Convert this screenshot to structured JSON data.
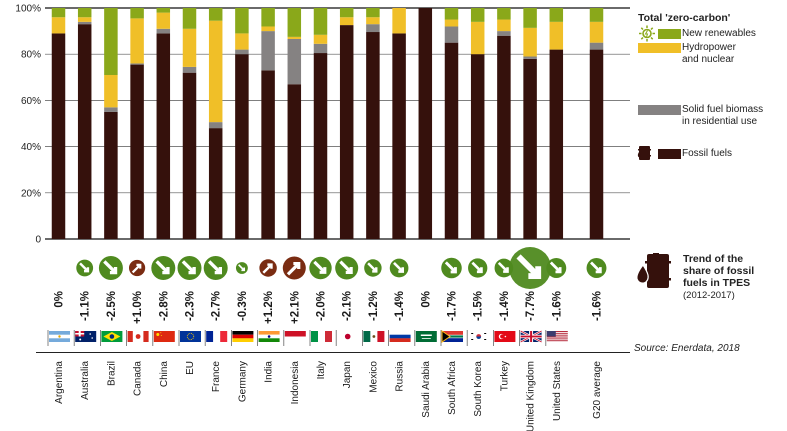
{
  "chart_data": {
    "type": "bar",
    "stacked": true,
    "title": "",
    "xlabel": "",
    "ylabel": "",
    "ylim": [
      0,
      100
    ],
    "yticks": [
      "0",
      "20%",
      "40%",
      "60%",
      "80%",
      "100%"
    ],
    "grid": true,
    "categories": [
      "Argentina",
      "Australia",
      "Brazil",
      "Canada",
      "China",
      "EU",
      "France",
      "Germany",
      "India",
      "Indonesia",
      "Italy",
      "Japan",
      "Mexico",
      "Russia",
      "Saudi Arabia",
      "South Africa",
      "South Korea",
      "Turkey",
      "United Kingdom",
      "United States",
      "G20 average"
    ],
    "series": [
      {
        "name": "Fossil fuels",
        "color": "#35110c",
        "values": [
          89,
          93,
          55,
          75.5,
          89,
          72,
          48,
          80,
          73,
          67,
          80.5,
          92.6,
          89.6,
          89,
          100,
          85,
          80,
          88,
          78,
          82,
          82
        ]
      },
      {
        "name": "Solid fuel biomass in residential use",
        "color": "#858282",
        "values": [
          0,
          1,
          2,
          0.5,
          2,
          2.5,
          2.6,
          2,
          17,
          19.6,
          4,
          0,
          3.4,
          0,
          0,
          7,
          0,
          2,
          1,
          0,
          3
        ]
      },
      {
        "name": "Hydropower and nuclear",
        "color": "#f0bf28",
        "values": [
          7,
          2,
          14,
          19.5,
          7,
          16.5,
          43.9,
          7,
          2,
          0.9,
          3.9,
          3.4,
          3,
          11,
          0,
          3,
          14,
          5,
          12.4,
          12,
          9
        ]
      },
      {
        "name": "New renewables",
        "color": "#8aa81a",
        "values": [
          4,
          4,
          29,
          4.5,
          2,
          9,
          5.5,
          11,
          8,
          12.5,
          11.6,
          4,
          4,
          0,
          0,
          5,
          6,
          5,
          8.6,
          6,
          6
        ]
      }
    ],
    "trend": {
      "title": "Trend of the share of fossil fuels in TPES",
      "period": "(2012-2017)",
      "labels": [
        "0%",
        "-1.1%",
        "-2.5%",
        "+1.0%",
        "-2.8%",
        "-2.3%",
        "-2.7%",
        "-0.3%",
        "+1.2%",
        "+2.1%",
        "-2.0%",
        "-2.1%",
        "-1.2%",
        "-1.4%",
        "0%",
        "-1.7%",
        "-1.5%",
        "-1.4%",
        "-7.7%",
        "-1.6%",
        "-1.6%"
      ],
      "values": [
        0,
        -1.1,
        -2.5,
        1.0,
        -2.8,
        -2.3,
        -2.7,
        -0.3,
        1.2,
        2.1,
        -2.0,
        -2.1,
        -1.2,
        -1.4,
        0,
        -1.7,
        -1.5,
        -1.4,
        -7.7,
        -1.6,
        -1.6
      ],
      "decrease_color": "#4f8a1f",
      "increase_color": "#7a2c12"
    },
    "legend_position": "right"
  },
  "legend": {
    "heading": "Total 'zero-carbon'",
    "items": [
      {
        "label_lines": [
          "New renewables"
        ],
        "icon": "sun-icon",
        "color": "#8aa81a"
      },
      {
        "label_lines": [
          "Hydropower",
          "and nuclear"
        ],
        "color": "#f0bf28"
      },
      {
        "label_lines": [
          "Solid fuel biomass",
          "in residential use"
        ],
        "color": "#858282"
      },
      {
        "label_lines": [
          "Fossil fuels"
        ],
        "icon": "barrel-icon",
        "color": "#35110c"
      }
    ]
  },
  "trend_legend": {
    "title_lines": [
      "Trend of the",
      "share of fossil",
      "fuels in TPES"
    ],
    "period": "(2012-2017)",
    "icon": "oil-barrel-drop-icon"
  },
  "flags": [
    "argentina-flag",
    "australia-flag",
    "brazil-flag",
    "canada-flag",
    "china-flag",
    "eu-flag",
    "france-flag",
    "germany-flag",
    "india-flag",
    "indonesia-flag",
    "italy-flag",
    "japan-flag",
    "mexico-flag",
    "russia-flag",
    "saudi-arabia-flag",
    "south-africa-flag",
    "south-korea-flag",
    "turkey-flag",
    "united-kingdom-flag",
    "united-states-flag"
  ],
  "source": "Source: Enerdata, 2018"
}
